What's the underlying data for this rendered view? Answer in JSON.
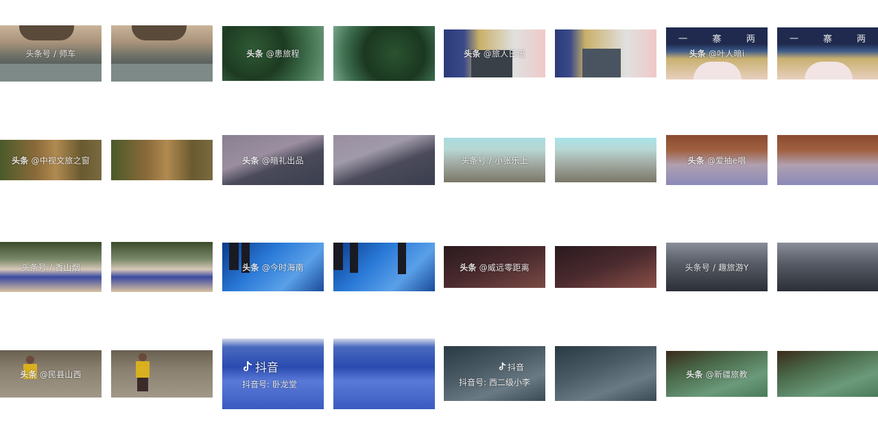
{
  "watermarks": {
    "r1c1": "头条号 / 师车",
    "r1c3": {
      "brand": "头条",
      "handle": " @患旅程"
    },
    "r1c5": {
      "brand": "头条",
      "handle": " @旅人日记"
    },
    "r1c7": {
      "brand": "头条",
      "handle": " @叶人暗i"
    },
    "r2c1": {
      "brand": "头条",
      "handle": " @中视文旅之窗"
    },
    "r2c3": {
      "brand": "头条",
      "handle": " @暗礼出品"
    },
    "r2c5": "头条号 / 小张乐上",
    "r2c7": {
      "brand": "头条",
      "handle": " @爱抽e唱"
    },
    "r3c1": "头条号 / 香山烟",
    "r3c3": {
      "brand": "头条",
      "handle": " @今时海南"
    },
    "r3c5": {
      "brand": "头条",
      "handle": " @威远零距离"
    },
    "r3c7": "头条号 / 趣旅游Y",
    "r4c1": {
      "brand": "头条",
      "handle": " @民县山西"
    },
    "r4c3": {
      "brand": "抖音",
      "handle": "抖音号: 卧龙堂"
    },
    "r4c5": {
      "brand": "抖音",
      "handle": "抖音号: 西二级小李"
    },
    "r4c7": {
      "brand": "头条",
      "handle": " @新疆旅教"
    }
  },
  "signs": {
    "r1c7": [
      "一",
      "寨",
      "两"
    ]
  },
  "colors": {
    "background": "#ffffff",
    "watermark": "#ffffff"
  }
}
